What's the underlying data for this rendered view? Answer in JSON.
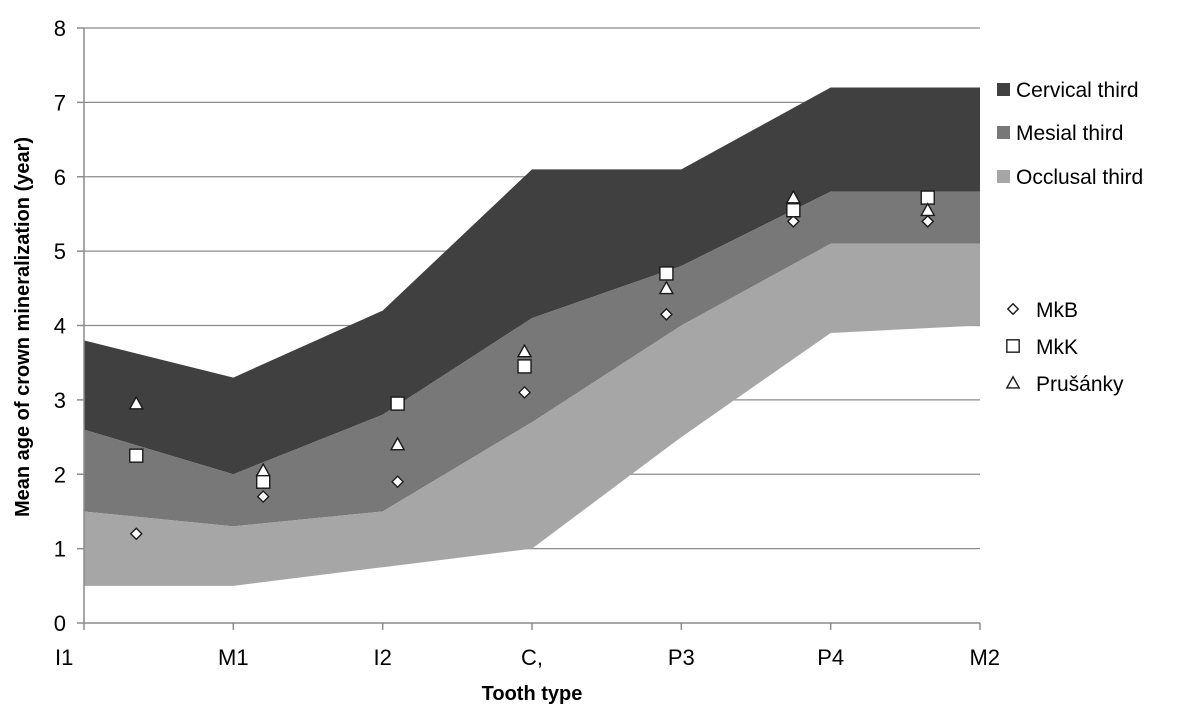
{
  "chart_data": {
    "type": "area",
    "title": "",
    "xlabel": "Tooth type",
    "ylabel": "Mean age of crown mineralization (year)",
    "categories": [
      "I1",
      "M1",
      "I2",
      "C,",
      "P3",
      "P4",
      "M2"
    ],
    "ylim": [
      0,
      8
    ],
    "yticks": [
      "0",
      "1",
      "2",
      "3",
      "4",
      "5",
      "6",
      "7",
      "8"
    ],
    "grid": true,
    "bands": [
      {
        "name": "Cervical third",
        "color": "#404040",
        "lower": [
          2.6,
          2.0,
          2.8,
          4.1,
          4.8,
          5.8,
          5.8
        ],
        "upper": [
          3.8,
          3.3,
          4.2,
          6.1,
          6.1,
          7.2,
          7.2
        ]
      },
      {
        "name": "Mesial third",
        "color": "#787878",
        "lower": [
          1.5,
          1.3,
          1.5,
          2.7,
          4.0,
          5.1,
          5.1
        ],
        "upper": [
          2.6,
          2.0,
          2.8,
          4.1,
          4.8,
          5.8,
          5.8
        ]
      },
      {
        "name": "Occlusal third",
        "color": "#a6a6a6",
        "lower": [
          0.5,
          0.5,
          0.75,
          1.0,
          2.5,
          3.9,
          4.0
        ],
        "upper": [
          1.5,
          1.3,
          1.5,
          2.7,
          4.0,
          5.1,
          5.1
        ]
      }
    ],
    "points_x": [
      0.35,
      1.2,
      2.1,
      2.95,
      3.9,
      4.75,
      5.65
    ],
    "series": [
      {
        "name": "MkB",
        "marker": "diamond",
        "values": [
          1.2,
          1.7,
          1.9,
          3.1,
          4.15,
          5.4,
          5.4
        ]
      },
      {
        "name": "MkK",
        "marker": "square",
        "values": [
          2.25,
          1.9,
          2.95,
          3.45,
          4.7,
          5.55,
          5.72
        ]
      },
      {
        "name": "Prušánky",
        "marker": "triangle",
        "values": [
          2.95,
          2.05,
          2.4,
          3.65,
          4.5,
          5.72,
          5.55
        ]
      }
    ],
    "legend_position": "right"
  }
}
